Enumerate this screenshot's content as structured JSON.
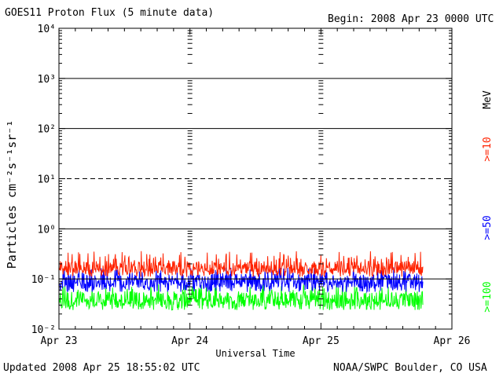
{
  "header": {
    "title": "GOES11 Proton Flux (5 minute data)",
    "begin": "Begin: 2008 Apr 23 0000 UTC"
  },
  "footer": {
    "updated": "Updated 2008 Apr 25 18:55:02 UTC",
    "credit": "NOAA/SWPC Boulder, CO USA"
  },
  "chart_data": {
    "type": "line",
    "ylabel": "Particles cm⁻²s⁻¹sr⁻¹",
    "xlabel": "Universal Time",
    "x_tick_labels": [
      "Apr 23",
      "Apr 24",
      "Apr 25",
      "Apr 26"
    ],
    "x_range_days": [
      0,
      3
    ],
    "data_end_day": 2.78,
    "y_scale": "log",
    "y_tick_labels": [
      "10⁻²",
      "10⁻¹",
      "10⁰",
      "10¹",
      "10²",
      "10³",
      "10⁴"
    ],
    "y_exponents": [
      -2,
      -1,
      0,
      1,
      2,
      3,
      4
    ],
    "ylim": [
      0.01,
      10000
    ],
    "solid_threshold_lines": [
      1000,
      100,
      1,
      0.1
    ],
    "dashed_threshold_lines": [
      10
    ],
    "legend_unit": "MeV",
    "series": [
      {
        "name": ">=10",
        "color": "#ff2200",
        "median": 0.17,
        "spread_low": 0.11,
        "spread_high": 0.36
      },
      {
        "name": ">=50",
        "color": "#0000ff",
        "median": 0.09,
        "spread_low": 0.055,
        "spread_high": 0.17
      },
      {
        "name": ">=100",
        "color": "#00ff00",
        "median": 0.04,
        "spread_low": 0.024,
        "spread_high": 0.08
      }
    ]
  }
}
